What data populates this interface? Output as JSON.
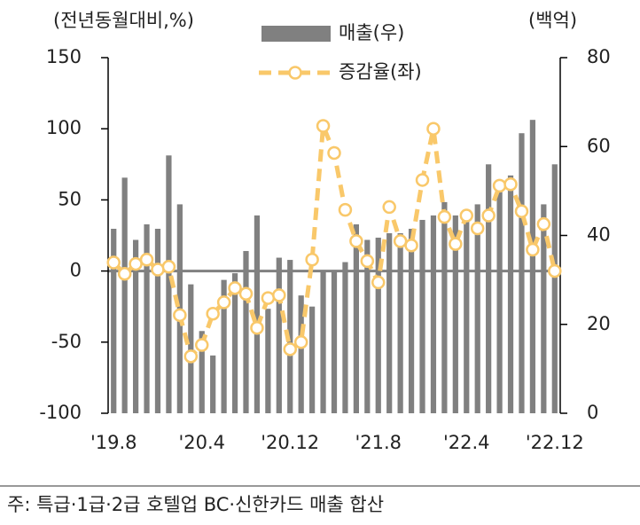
{
  "chart_data": {
    "type": "bar_line",
    "y_label": "(전년동월대비,%)",
    "y2_label": "(백억)",
    "footnote": "주: 특급·1급·2급 호텔업 BC·신한카드 매출 합산",
    "categories": [
      "'19.8",
      null,
      null,
      null,
      null,
      null,
      null,
      null,
      "'20.4",
      null,
      null,
      null,
      null,
      null,
      null,
      null,
      "'20.12",
      null,
      null,
      null,
      null,
      null,
      null,
      null,
      "'21.8",
      null,
      null,
      null,
      null,
      null,
      null,
      null,
      "'22.4",
      null,
      null,
      null,
      null,
      null,
      null,
      null,
      "'22.12"
    ],
    "series": [
      {
        "name": "매출(우)",
        "type": "bar",
        "axis": "y2",
        "color": "#808080",
        "values": [
          41.5,
          53,
          39,
          42.5,
          41.5,
          58,
          47,
          29,
          18.5,
          13,
          30,
          31.5,
          36.5,
          44.5,
          23.5,
          35,
          34.5,
          26.5,
          24,
          32,
          32,
          34,
          42.5,
          39,
          39.5,
          40.5,
          40.5,
          41.5,
          43.5,
          44.5,
          47.5,
          44.5,
          43.5,
          47,
          56,
          52,
          53.5,
          63,
          66,
          47,
          56
        ]
      },
      {
        "name": "증감율(좌)",
        "type": "line",
        "axis": "y",
        "color": "#f9c86a",
        "values": [
          6,
          -2,
          5,
          8,
          1,
          3,
          -31,
          -60,
          -52,
          -30,
          -22,
          -12,
          -16,
          -40,
          -19,
          -17,
          -55,
          -50,
          8,
          102,
          83,
          43,
          21,
          7,
          -8,
          45,
          21,
          18,
          64,
          100,
          38,
          19,
          39,
          30,
          39,
          60,
          61,
          42,
          15,
          33,
          0
        ]
      }
    ],
    "ylim": [
      -100,
      150
    ],
    "yticks": [
      -100,
      -50,
      0,
      50,
      100,
      150
    ],
    "y2lim": [
      0,
      80
    ],
    "y2ticks": [
      0,
      20,
      40,
      60,
      80
    ]
  }
}
